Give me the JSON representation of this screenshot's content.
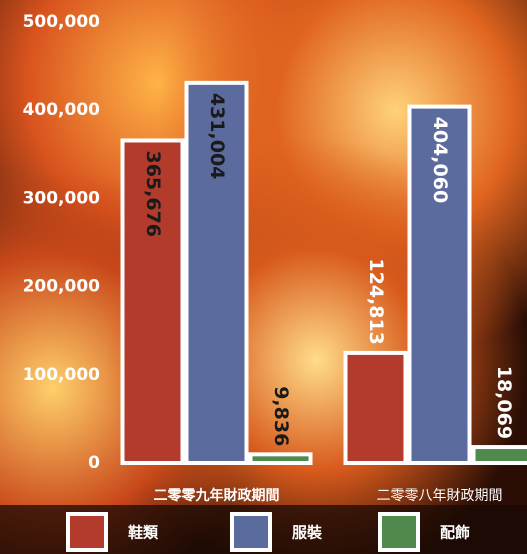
{
  "chart_data": {
    "type": "bar",
    "categories": [
      "二零零九年財政期間",
      "二零零八年財政期間"
    ],
    "series": [
      {
        "name": "鞋類",
        "color": "#b23b2c",
        "values": [
          365676,
          124813
        ],
        "value_labels": [
          "365,676",
          "124,813"
        ]
      },
      {
        "name": "服裝",
        "color": "#5b6b9e",
        "values": [
          431004,
          404060
        ],
        "value_labels": [
          "431,004",
          "404,060"
        ]
      },
      {
        "name": "配飾",
        "color": "#4f8a4c",
        "values": [
          9836,
          18069
        ],
        "value_labels": [
          "9,836",
          "18,069"
        ]
      }
    ],
    "ylim": [
      0,
      500000
    ],
    "yticks": [
      0,
      {
        "value": 100000,
        "label": "100,000"
      },
      {
        "value": 200000,
        "label": "200,000"
      },
      {
        "value": 300000,
        "label": "300,000"
      },
      {
        "value": 400000,
        "label": "400,000"
      },
      {
        "value": 500000,
        "label": "500,000"
      }
    ]
  }
}
